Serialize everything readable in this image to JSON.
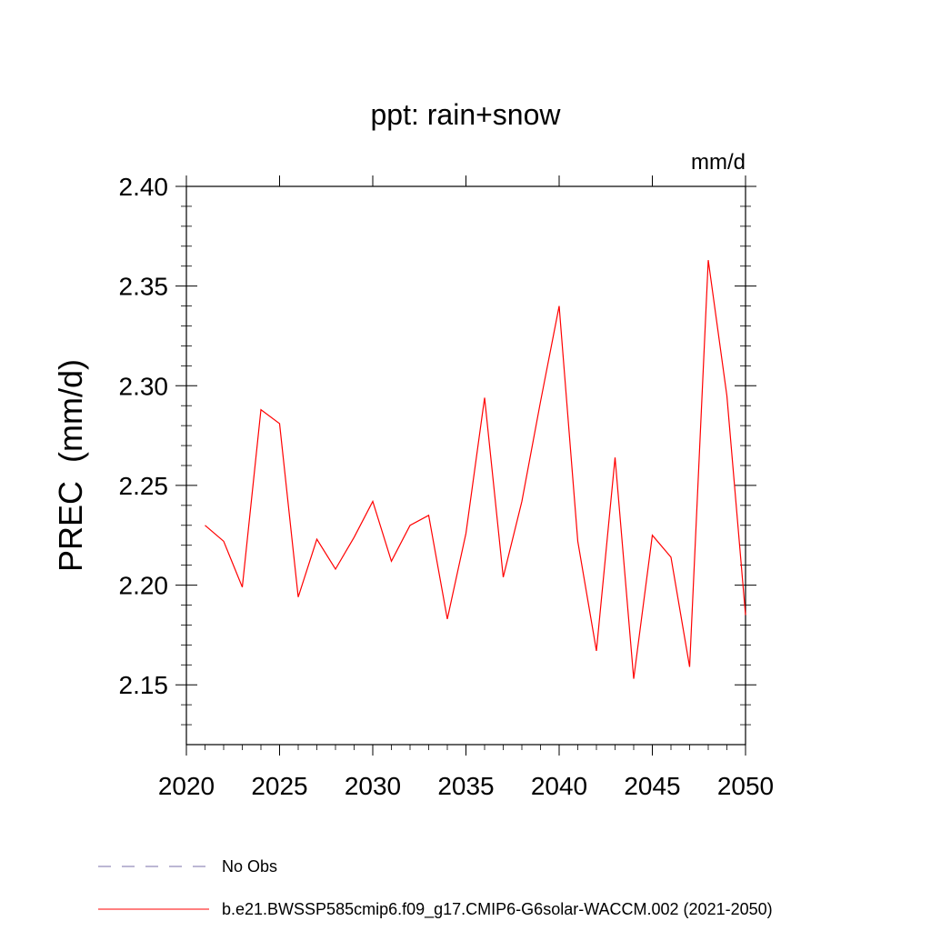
{
  "chart_data": {
    "type": "line",
    "title": "ppt: rain+snow",
    "units_label": "mm/d",
    "ylabel": "PREC  (mm/d)",
    "xlabel": "",
    "xlim": [
      2020,
      2050
    ],
    "ylim": [
      2.12,
      2.4
    ],
    "x_ticks": [
      2020,
      2025,
      2030,
      2035,
      2040,
      2045,
      2050
    ],
    "y_ticks": [
      2.15,
      2.2,
      2.25,
      2.3,
      2.35,
      2.4
    ],
    "x_tick_labels": [
      "2020",
      "2025",
      "2030",
      "2035",
      "2040",
      "2045",
      "2050"
    ],
    "y_tick_labels": [
      "2.15",
      "2.20",
      "2.25",
      "2.30",
      "2.35",
      "2.40"
    ],
    "series": [
      {
        "name": "b.e21.BWSSP585cmip6.f09_g17.CMIP6-G6solar-WACCM.002 (2021-2050)",
        "color": "#ff0000",
        "style": "solid",
        "x": [
          2021,
          2022,
          2023,
          2024,
          2025,
          2026,
          2027,
          2028,
          2029,
          2030,
          2031,
          2032,
          2033,
          2034,
          2035,
          2036,
          2037,
          2038,
          2039,
          2040,
          2041,
          2042,
          2043,
          2044,
          2045,
          2046,
          2047,
          2048,
          2049,
          2050
        ],
        "y": [
          2.23,
          2.222,
          2.199,
          2.288,
          2.281,
          2.194,
          2.223,
          2.208,
          2.224,
          2.242,
          2.212,
          2.23,
          2.235,
          2.183,
          2.226,
          2.294,
          2.204,
          2.242,
          2.292,
          2.34,
          2.222,
          2.167,
          2.264,
          2.153,
          2.225,
          2.214,
          2.159,
          2.363,
          2.295,
          2.185
        ]
      }
    ],
    "legend": [
      {
        "label": "No Obs",
        "color": "#7a6fa8",
        "style": "dashed"
      },
      {
        "label": "b.e21.BWSSP585cmip6.f09_g17.CMIP6-G6solar-WACCM.002 (2021-2050)",
        "color": "#ff0000",
        "style": "solid"
      }
    ],
    "legend_position": "bottom-left"
  }
}
